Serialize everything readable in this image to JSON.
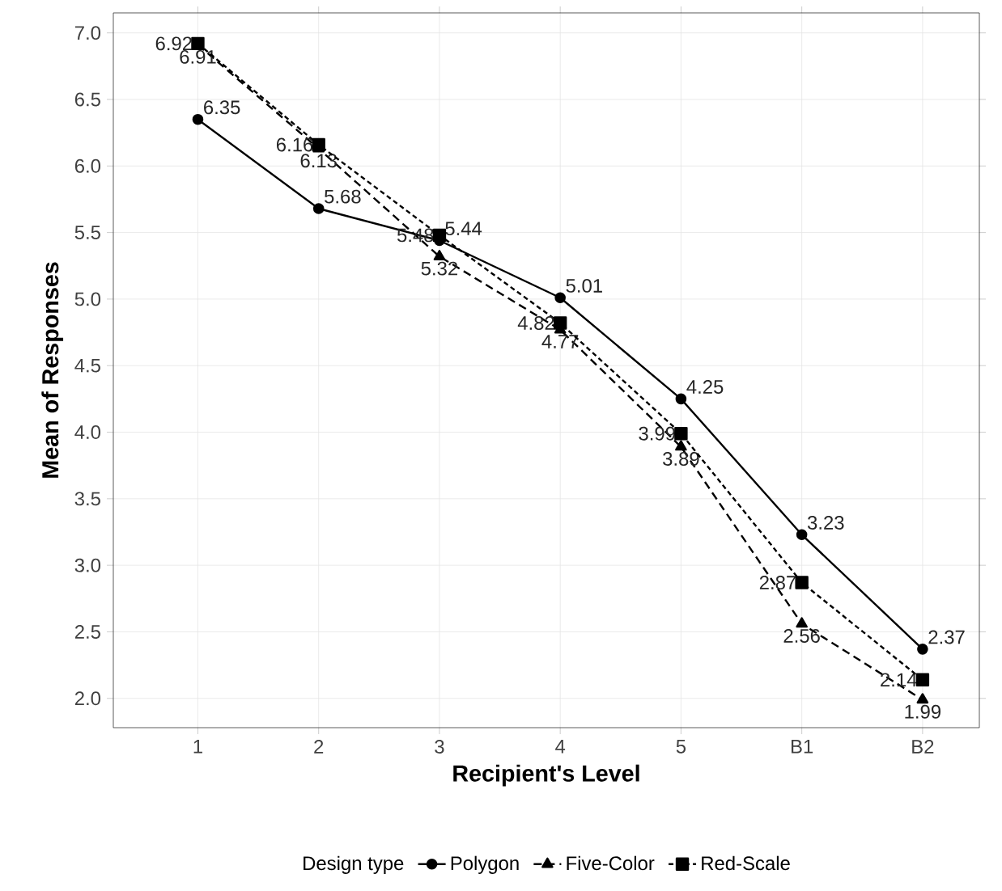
{
  "chart_data": {
    "type": "line",
    "xlabel": "Recipient's Level",
    "ylabel": "Mean of Responses",
    "legend_title": "Design type",
    "categories": [
      "1",
      "2",
      "3",
      "4",
      "5",
      "B1",
      "B2"
    ],
    "series": [
      {
        "name": "Polygon",
        "color": "#000000",
        "marker": "circle",
        "line_style": "solid",
        "values": [
          6.35,
          5.68,
          5.44,
          5.01,
          4.25,
          3.23,
          2.37
        ]
      },
      {
        "name": "Five-Color",
        "color": "#000000",
        "marker": "triangle",
        "line_style": "dashed",
        "values": [
          6.91,
          6.13,
          5.32,
          4.77,
          3.89,
          2.56,
          1.99
        ]
      },
      {
        "name": "Red-Scale",
        "color": "#000000",
        "marker": "square",
        "line_style": "dotted",
        "values": [
          6.92,
          6.16,
          5.48,
          4.82,
          3.99,
          2.87,
          2.14
        ]
      }
    ],
    "ylim": [
      1.78,
      7.15
    ],
    "yticks": [
      {
        "value": 2,
        "label": "2.0"
      },
      {
        "value": 2.5,
        "label": "2.5"
      },
      {
        "value": 3,
        "label": "3.0"
      },
      {
        "value": 3.5,
        "label": "3.5"
      },
      {
        "value": 4,
        "label": "4.0"
      },
      {
        "value": 4.5,
        "label": "4.5"
      },
      {
        "value": 5,
        "label": "5.0"
      },
      {
        "value": 5.5,
        "label": "5.5"
      },
      {
        "value": 6,
        "label": "6.0"
      },
      {
        "value": 6.5,
        "label": "6.5"
      },
      {
        "value": 7,
        "label": "7.0"
      }
    ],
    "grid": true,
    "legend": "bottom",
    "data_labels": true
  }
}
